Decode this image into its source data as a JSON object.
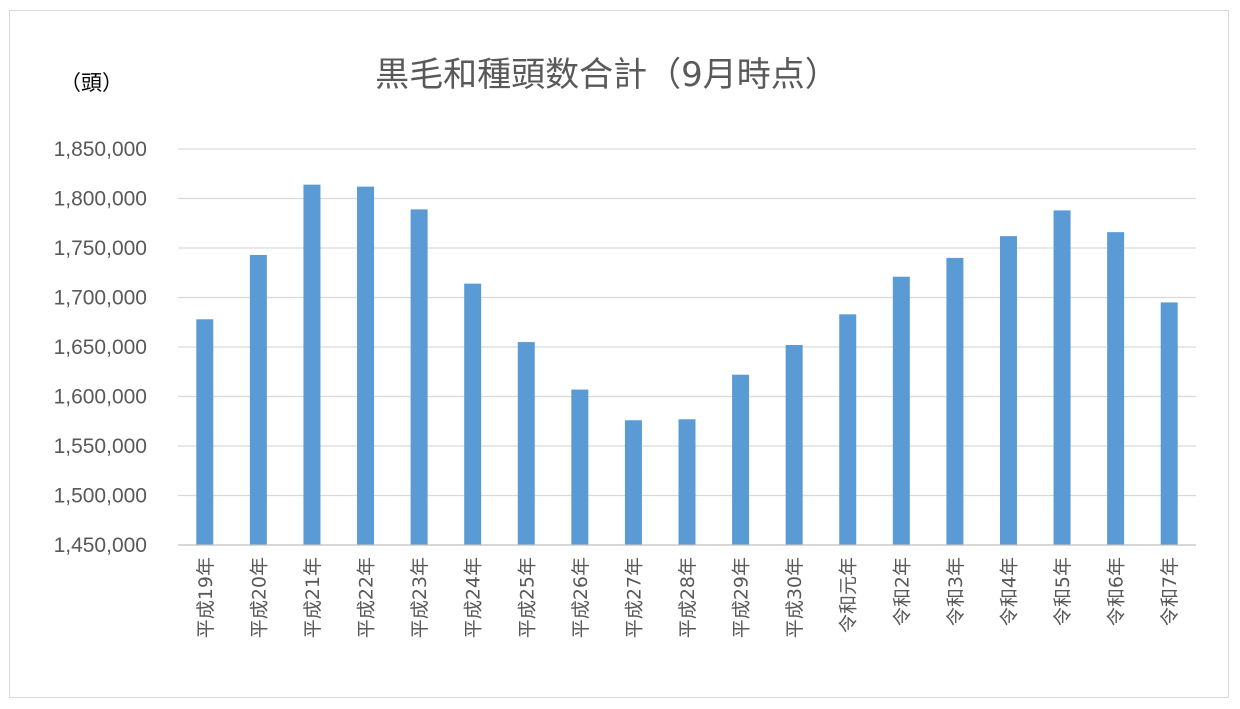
{
  "chart_data": {
    "type": "bar",
    "title": "黒毛和種頭数合計（9月時点）",
    "unit_label": "（頭）",
    "xlabel": "",
    "ylabel": "",
    "ylim": [
      1450000,
      1850000
    ],
    "yticks": [
      1450000,
      1500000,
      1550000,
      1600000,
      1650000,
      1700000,
      1750000,
      1800000,
      1850000
    ],
    "ytick_labels": [
      "1,450,000",
      "1,500,000",
      "1,550,000",
      "1,600,000",
      "1,650,000",
      "1,700,000",
      "1,750,000",
      "1,800,000",
      "1,850,000"
    ],
    "grid": true,
    "legend": "none",
    "bar_color": "#5b9bd5",
    "categories": [
      "平成19年",
      "平成20年",
      "平成21年",
      "平成22年",
      "平成23年",
      "平成24年",
      "平成25年",
      "平成26年",
      "平成27年",
      "平成28年",
      "平成29年",
      "平成30年",
      "令和元年",
      "令和2年",
      "令和3年",
      "令和4年",
      "令和5年",
      "令和6年",
      "令和7年"
    ],
    "values": [
      1678000,
      1743000,
      1814000,
      1812000,
      1789000,
      1714000,
      1655000,
      1607000,
      1576000,
      1577000,
      1622000,
      1652000,
      1683000,
      1721000,
      1740000,
      1762000,
      1788000,
      1766000,
      1695000
    ]
  }
}
